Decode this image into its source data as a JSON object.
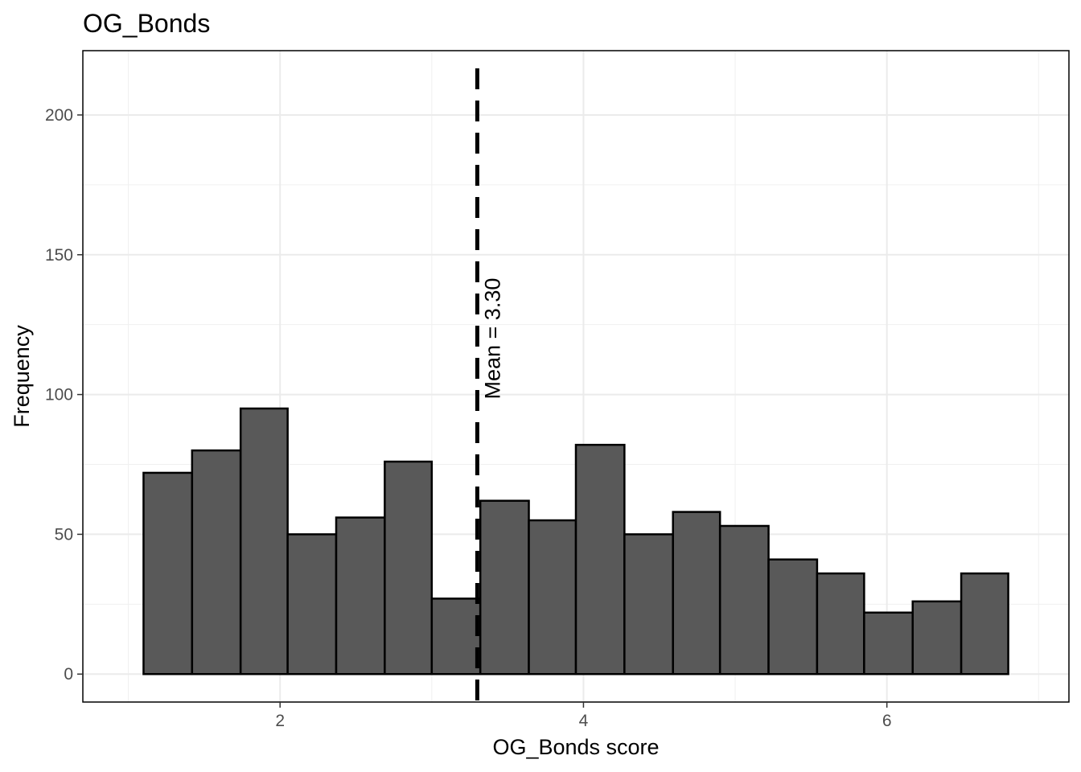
{
  "chart_data": {
    "type": "bar",
    "title": "OG_Bonds",
    "xlabel": "OG_Bonds score",
    "ylabel": "Frequency",
    "xlim": [
      0.7,
      7.2
    ],
    "ylim": [
      -10,
      223
    ],
    "x_ticks": [
      2,
      4,
      6
    ],
    "y_ticks": [
      0,
      50,
      100,
      150,
      200
    ],
    "grid": true,
    "bar_color": "#595959",
    "bar_edge_color": "#000000",
    "bins": [
      {
        "x0": 1.1,
        "x1": 1.42,
        "count": 72
      },
      {
        "x0": 1.42,
        "x1": 1.74,
        "count": 80
      },
      {
        "x0": 1.74,
        "x1": 2.05,
        "count": 95
      },
      {
        "x0": 2.05,
        "x1": 2.37,
        "count": 50
      },
      {
        "x0": 2.37,
        "x1": 2.69,
        "count": 56
      },
      {
        "x0": 2.69,
        "x1": 3.0,
        "count": 76
      },
      {
        "x0": 3.0,
        "x1": 3.32,
        "count": 27
      },
      {
        "x0": 3.32,
        "x1": 3.64,
        "count": 62
      },
      {
        "x0": 3.64,
        "x1": 3.95,
        "count": 55
      },
      {
        "x0": 3.95,
        "x1": 4.27,
        "count": 82
      },
      {
        "x0": 4.27,
        "x1": 4.59,
        "count": 50
      },
      {
        "x0": 4.59,
        "x1": 4.9,
        "count": 58
      },
      {
        "x0": 4.9,
        "x1": 5.22,
        "count": 53
      },
      {
        "x0": 5.22,
        "x1": 5.54,
        "count": 41
      },
      {
        "x0": 5.54,
        "x1": 5.85,
        "count": 36
      },
      {
        "x0": 5.85,
        "x1": 6.17,
        "count": 22
      },
      {
        "x0": 6.17,
        "x1": 6.49,
        "count": 26
      },
      {
        "x0": 6.49,
        "x1": 6.8,
        "count": 36
      }
    ],
    "mean_line": {
      "value": 3.3,
      "label": "Mean = 3.30",
      "style": "dashed",
      "label_y": 120
    }
  }
}
